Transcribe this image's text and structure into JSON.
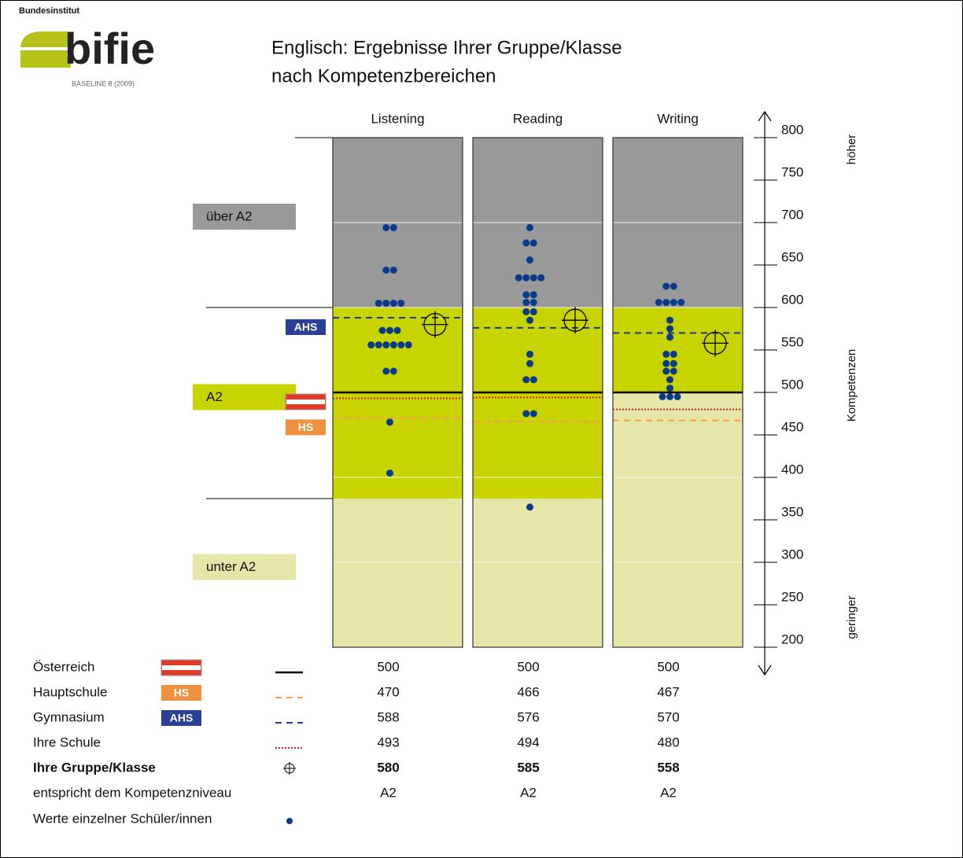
{
  "logo": {
    "institute": "Bundesinstitut",
    "name": "bifie",
    "edition": "BASELINE 8 (2009)"
  },
  "chart_data": {
    "type": "dot-scale",
    "title": [
      "Englisch: Ergebnisse Ihrer Gruppe/Klasse",
      "nach Kompetenzbereichen"
    ],
    "categories": [
      "Listening",
      "Reading",
      "Writing"
    ],
    "ylim": [
      200,
      800
    ],
    "yticks": [
      200,
      250,
      300,
      350,
      400,
      450,
      500,
      550,
      600,
      650,
      700,
      750,
      800
    ],
    "axis_labels": {
      "top": "höher",
      "middle": "Kompetenzen",
      "bottom": "geringer"
    },
    "levels": [
      {
        "name": "über A2",
        "color": "#999999"
      },
      {
        "name": "A2",
        "color": "#c8d400"
      },
      {
        "name": "unter A2",
        "color": "#e6e6a8"
      }
    ],
    "level_bounds": [
      [
        600,
        375
      ],
      [
        600,
        375
      ],
      [
        600,
        500
      ]
    ],
    "series": [
      {
        "name": "Österreich",
        "flag": true,
        "style": "solid",
        "color": "#000000",
        "values": [
          500,
          500,
          500
        ]
      },
      {
        "name": "Hauptschule",
        "badge": "HS",
        "badge_color": "#f0913f",
        "style": "dashed",
        "color": "#f5a050",
        "values": [
          470,
          466,
          467
        ]
      },
      {
        "name": "Gymnasium",
        "badge": "AHS",
        "badge_color": "#2a3f96",
        "style": "dashed",
        "color": "#1f3a93",
        "values": [
          588,
          576,
          570
        ]
      },
      {
        "name": "Ihre Schule",
        "style": "dotted",
        "color": "#d42020",
        "values": [
          493,
          494,
          480
        ]
      },
      {
        "name": "Ihre Gruppe/Klasse",
        "style": "crosshair",
        "bold": true,
        "color": "#000000",
        "values": [
          580,
          585,
          558
        ]
      }
    ],
    "level_row": {
      "name": "entspricht dem Kompetenzniveau",
      "values": [
        "A2",
        "A2",
        "A2"
      ]
    },
    "students": {
      "name": "Werte einzelner Schüler/innen",
      "color": "#0a3a8a",
      "values": [
        [
          694,
          694,
          644,
          644,
          605,
          605,
          605,
          605,
          573,
          573,
          573,
          556,
          556,
          556,
          556,
          556,
          556,
          525,
          525,
          465,
          405
        ],
        [
          694,
          676,
          676,
          656,
          635,
          635,
          635,
          635,
          615,
          615,
          606,
          606,
          595,
          595,
          585,
          545,
          534,
          515,
          515,
          475,
          475,
          365
        ],
        [
          625,
          625,
          606,
          606,
          606,
          606,
          585,
          575,
          565,
          545,
          545,
          534,
          534,
          525,
          525,
          515,
          505,
          495,
          495,
          495
        ]
      ]
    }
  }
}
